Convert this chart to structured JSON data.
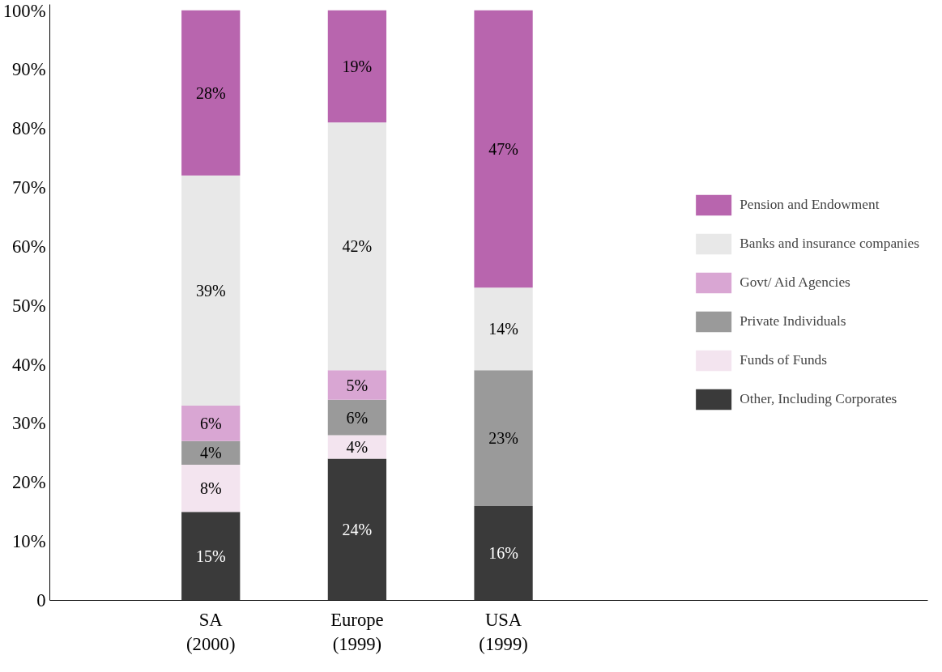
{
  "chart_data": {
    "type": "bar",
    "stacked": true,
    "legend": "right",
    "categories": [
      "SA\n(2000)",
      "Europe\n(1999)",
      "USA\n(1999)"
    ],
    "series": [
      {
        "name": "Other, Including Corporates",
        "color": "#3a3a3a",
        "values": [
          15,
          24,
          16
        ],
        "value_labels": [
          "15%",
          "24%",
          "16%"
        ]
      },
      {
        "name": "Funds of Funds",
        "color": "#f3e4ef",
        "values": [
          8,
          4,
          null
        ],
        "value_labels": [
          "8%",
          "4%",
          null
        ]
      },
      {
        "name": "Private Individuals",
        "color": "#9a9a9a",
        "values": [
          4,
          6,
          23
        ],
        "value_labels": [
          "4%",
          "6%",
          "23%"
        ]
      },
      {
        "name": "Govt/ Aid Agencies",
        "color": "#d9a6d3",
        "values": [
          6,
          5,
          null
        ],
        "value_labels": [
          "6%",
          "5%",
          null
        ]
      },
      {
        "name": "Banks and insurance companies",
        "color": "#e8e8e8",
        "values": [
          39,
          42,
          14
        ],
        "value_labels": [
          "39%",
          "42%",
          "14%"
        ]
      },
      {
        "name": "Pension and Endowment",
        "color": "#b865ae",
        "values": [
          28,
          19,
          47
        ],
        "value_labels": [
          "28%",
          "19%",
          "47%"
        ]
      }
    ],
    "ylim": [
      0,
      101
    ],
    "yticks": [
      {
        "value": 0,
        "label": "0"
      },
      {
        "value": 10,
        "label": "10%"
      },
      {
        "value": 20,
        "label": "20%"
      },
      {
        "value": 30,
        "label": "30%"
      },
      {
        "value": 40,
        "label": "40%"
      },
      {
        "value": 50,
        "label": "50%"
      },
      {
        "value": 60,
        "label": "60%"
      },
      {
        "value": 70,
        "label": "70%"
      },
      {
        "value": 80,
        "label": "80%"
      },
      {
        "value": 90,
        "label": "90%"
      },
      {
        "value": 100,
        "label": "100%"
      }
    ]
  }
}
